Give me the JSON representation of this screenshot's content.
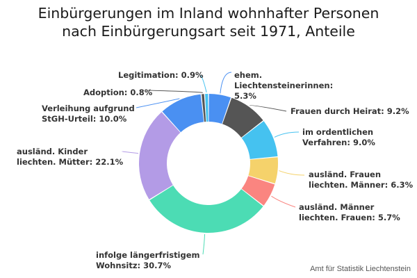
{
  "title_lines": [
    "Einbürgerungen im Inland wohnhafter Personen",
    "nach Einbürgerungsart seit 1971, Anteile"
  ],
  "source": "Amt für Statistik Liechtenstein",
  "chart_data": {
    "type": "pie",
    "donut": true,
    "unit": "%",
    "slices": [
      {
        "label_lines": [
          "ehem.",
          "Liechtensteinerinnen:",
          "5.3%"
        ],
        "value": 5.3,
        "color": "#4a90f2"
      },
      {
        "label_lines": [
          "Frauen durch Heirat: 9.2%"
        ],
        "value": 9.2,
        "color": "#555555"
      },
      {
        "label_lines": [
          "im ordentlichen",
          "Verfahren: 9.0%"
        ],
        "value": 9.0,
        "color": "#45c2f0"
      },
      {
        "label_lines": [
          "ausländ. Frauen",
          "liechten. Männer: 6.3%"
        ],
        "value": 6.3,
        "color": "#f5d26b"
      },
      {
        "label_lines": [
          "ausländ. Männer",
          "liechten. Frauen: 5.7%"
        ],
        "value": 5.7,
        "color": "#fa8580"
      },
      {
        "label_lines": [
          "infolge längerfristigem",
          "Wohnsitz: 30.7%"
        ],
        "value": 30.7,
        "color": "#4cdcb4"
      },
      {
        "label_lines": [
          "ausländ. Kinder",
          "liechten. Mütter: 22.1%"
        ],
        "value": 22.1,
        "color": "#b39be6"
      },
      {
        "label_lines": [
          "Verleihung aufgrund",
          "StGH-Urteil: 10.0%"
        ],
        "value": 10.0,
        "color": "#4a90f2"
      },
      {
        "label_lines": [
          "Adoption: 0.8%"
        ],
        "value": 0.8,
        "color": "#555555"
      },
      {
        "label_lines": [
          "Legitimation: 0.9%"
        ],
        "value": 0.9,
        "color": "#45c2f0"
      }
    ]
  }
}
